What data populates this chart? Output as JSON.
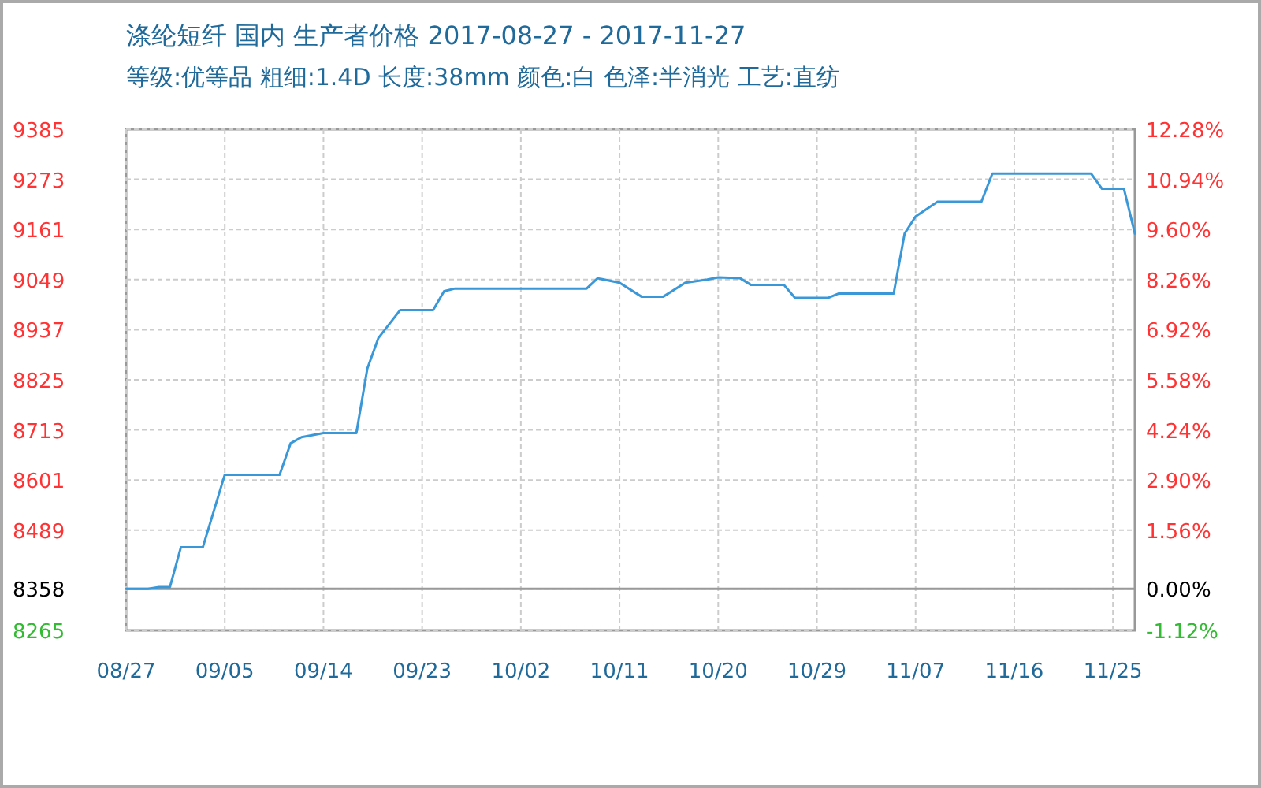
{
  "chart_data": {
    "type": "line",
    "title": "涤纶短纤 国内 生产者价格 2017-08-27 - 2017-11-27",
    "subtitle": "等级:优等品 粗细:1.4D 长度:38mm 颜色:白 色泽:半消光 工艺:直纺",
    "x": [
      "2017-08-27",
      "2017-08-29",
      "2017-08-30",
      "2017-08-31",
      "2017-09-01",
      "2017-09-03",
      "2017-09-05",
      "2017-09-10",
      "2017-09-11",
      "2017-09-12",
      "2017-09-14",
      "2017-09-17",
      "2017-09-18",
      "2017-09-19",
      "2017-09-21",
      "2017-09-24",
      "2017-09-25",
      "2017-09-26",
      "2017-10-08",
      "2017-10-09",
      "2017-10-11",
      "2017-10-13",
      "2017-10-15",
      "2017-10-17",
      "2017-10-19",
      "2017-10-20",
      "2017-10-22",
      "2017-10-23",
      "2017-10-26",
      "2017-10-27",
      "2017-10-30",
      "2017-10-31",
      "2017-11-05",
      "2017-11-06",
      "2017-11-07",
      "2017-11-09",
      "2017-11-13",
      "2017-11-14",
      "2017-11-23",
      "2017-11-24",
      "2017-11-26",
      "2017-11-27"
    ],
    "series": [
      {
        "color": "#3a98d8",
        "values": [
          8358,
          8358,
          8362,
          8362,
          8451,
          8451,
          8613,
          8613,
          8683,
          8697,
          8706,
          8706,
          8850,
          8918,
          8981,
          8981,
          9023,
          9029,
          9029,
          9052,
          9042,
          9011,
          9011,
          9042,
          9049,
          9054,
          9052,
          9037,
          9037,
          9008,
          9008,
          9018,
          9018,
          9152,
          9190,
          9223,
          9223,
          9286,
          9286,
          9252,
          9252,
          9152
        ]
      }
    ],
    "xlim": [
      "2017-08-27",
      "2017-11-27"
    ],
    "xticks": [
      {
        "value": "2017-08-27",
        "label": "08/27"
      },
      {
        "value": "2017-09-05",
        "label": "09/05"
      },
      {
        "value": "2017-09-14",
        "label": "09/14"
      },
      {
        "value": "2017-09-23",
        "label": "09/23"
      },
      {
        "value": "2017-10-02",
        "label": "10/02"
      },
      {
        "value": "2017-10-11",
        "label": "10/11"
      },
      {
        "value": "2017-10-20",
        "label": "10/20"
      },
      {
        "value": "2017-10-29",
        "label": "10/29"
      },
      {
        "value": "2017-11-07",
        "label": "11/07"
      },
      {
        "value": "2017-11-16",
        "label": "11/16"
      },
      {
        "value": "2017-11-25",
        "label": "11/25"
      }
    ],
    "ylim": [
      8265,
      9385
    ],
    "yticks": [
      8265,
      8358,
      8489,
      8601,
      8713,
      8825,
      8937,
      9049,
      9161,
      9273,
      9385
    ],
    "y2lim": [
      -1.12,
      12.28
    ],
    "y2ticks": [
      {
        "value": -1.12,
        "label": "-1.12%"
      },
      {
        "value": 0,
        "label": "0.00%"
      },
      {
        "value": 1.56,
        "label": "1.56%"
      },
      {
        "value": 2.9,
        "label": "2.90%"
      },
      {
        "value": 4.24,
        "label": "4.24%"
      },
      {
        "value": 5.58,
        "label": "5.58%"
      },
      {
        "value": 6.92,
        "label": "6.92%"
      },
      {
        "value": 8.26,
        "label": "8.26%"
      },
      {
        "value": 9.6,
        "label": "9.60%"
      },
      {
        "value": 10.94,
        "label": "10.94%"
      },
      {
        "value": 12.28,
        "label": "12.28%"
      }
    ],
    "grid": true,
    "ref_lines": [
      {
        "axis": "y",
        "value": 8358,
        "color": "#999999"
      }
    ]
  }
}
